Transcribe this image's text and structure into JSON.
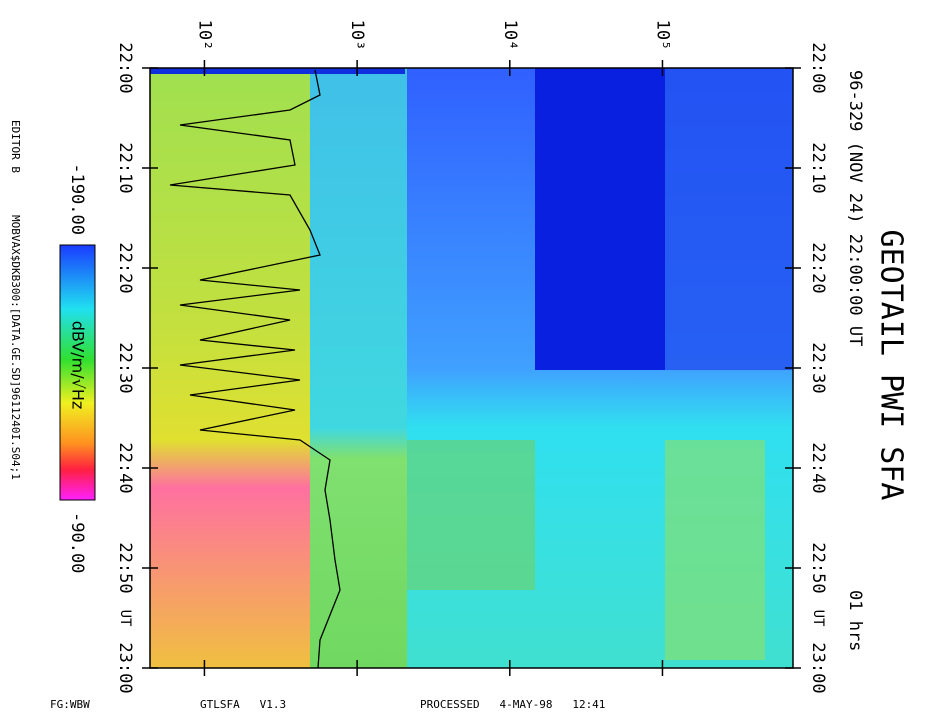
{
  "chart_data": {
    "type": "spectrogram",
    "title": "GEOTAIL PWI SFA",
    "subtitle": "96-329 (NOV 24) 22:00:00 UT",
    "duration": "01 hrs",
    "editor": "EDITOR B",
    "file": "MOBVAX$DKB300:[DATA.GE.SD]9611240I.S04;1",
    "footer": [
      "FG:WBW",
      "GTLSFA   V1.3",
      "PROCESSED   4-MAY-98   12:41"
    ],
    "log_x": true,
    "xlim": [
      44,
      716000
    ],
    "xticks": [
      {
        "value": 100,
        "label": "10²"
      },
      {
        "value": 1000,
        "label": "10³"
      },
      {
        "value": 10000,
        "label": "10⁴"
      },
      {
        "value": 100000,
        "label": "10⁵"
      }
    ],
    "ylim": [
      0,
      60
    ],
    "yticks": [
      {
        "value": 0,
        "label": "22:00"
      },
      {
        "value": 10,
        "label": "22:10"
      },
      {
        "value": 20,
        "label": "22:20"
      },
      {
        "value": 30,
        "label": "22:30"
      },
      {
        "value": 40,
        "label": "22:40"
      },
      {
        "value": 50,
        "label": "22:50"
      },
      {
        "value": 60,
        "label": "23:00"
      }
    ],
    "time_unit": "UT",
    "colorbar": {
      "label": "dBV/m/√Hz",
      "ticks": [
        {
          "value": -190,
          "label": "-190.00"
        },
        {
          "value": -90,
          "label": "-90.00"
        }
      ]
    }
  }
}
